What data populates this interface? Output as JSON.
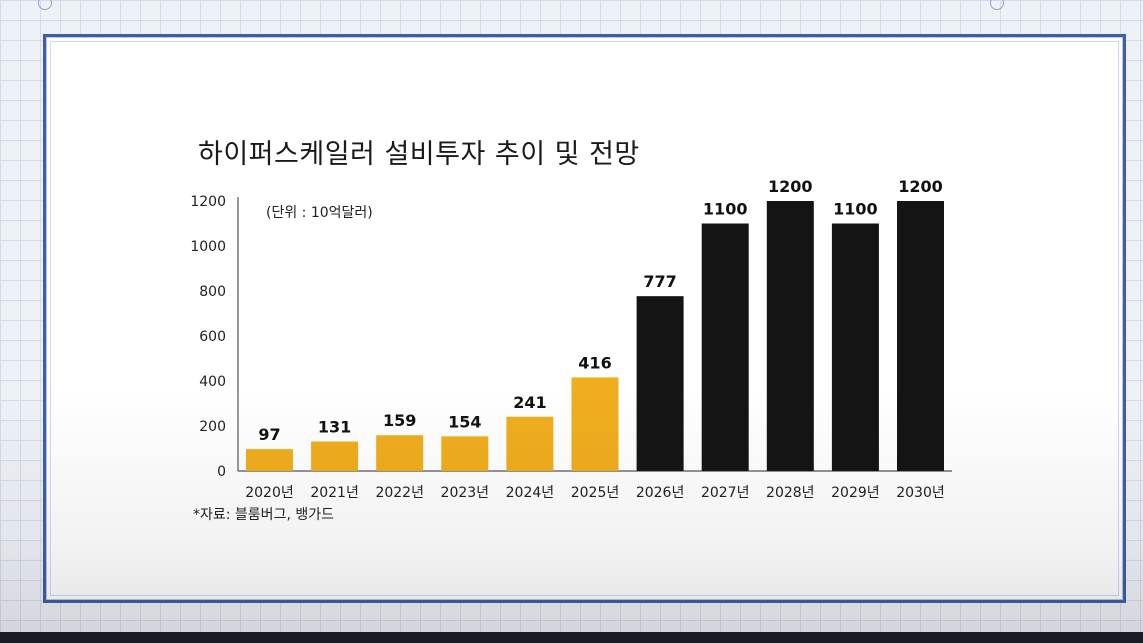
{
  "chart_data": {
    "type": "bar",
    "title": "하이퍼스케일러 설비투자 추이 및 전망",
    "unit_note": "(단위 : 10억달러)",
    "source_note": "*자료: 블룸버그, 뱅가드",
    "categories": [
      "2020년",
      "2021년",
      "2022년",
      "2023년",
      "2024년",
      "2025년",
      "2026년",
      "2027년",
      "2028년",
      "2029년",
      "2030년"
    ],
    "values": [
      97,
      131,
      159,
      154,
      241,
      416,
      777,
      1100,
      1200,
      1100,
      1200
    ],
    "value_labels": [
      "97",
      "131",
      "159",
      "154",
      "241",
      "416",
      "777",
      "1100",
      "1200",
      "1100",
      "1200"
    ],
    "yticks": [
      "0",
      "200",
      "400",
      "600",
      "800",
      "1000",
      "1200"
    ],
    "ylim": [
      0,
      1200
    ],
    "xlabel": "",
    "ylabel": "",
    "grid": false,
    "colors": {
      "actual": "#f0ad1e",
      "forecast": "#141414"
    },
    "actual_count": 6
  }
}
